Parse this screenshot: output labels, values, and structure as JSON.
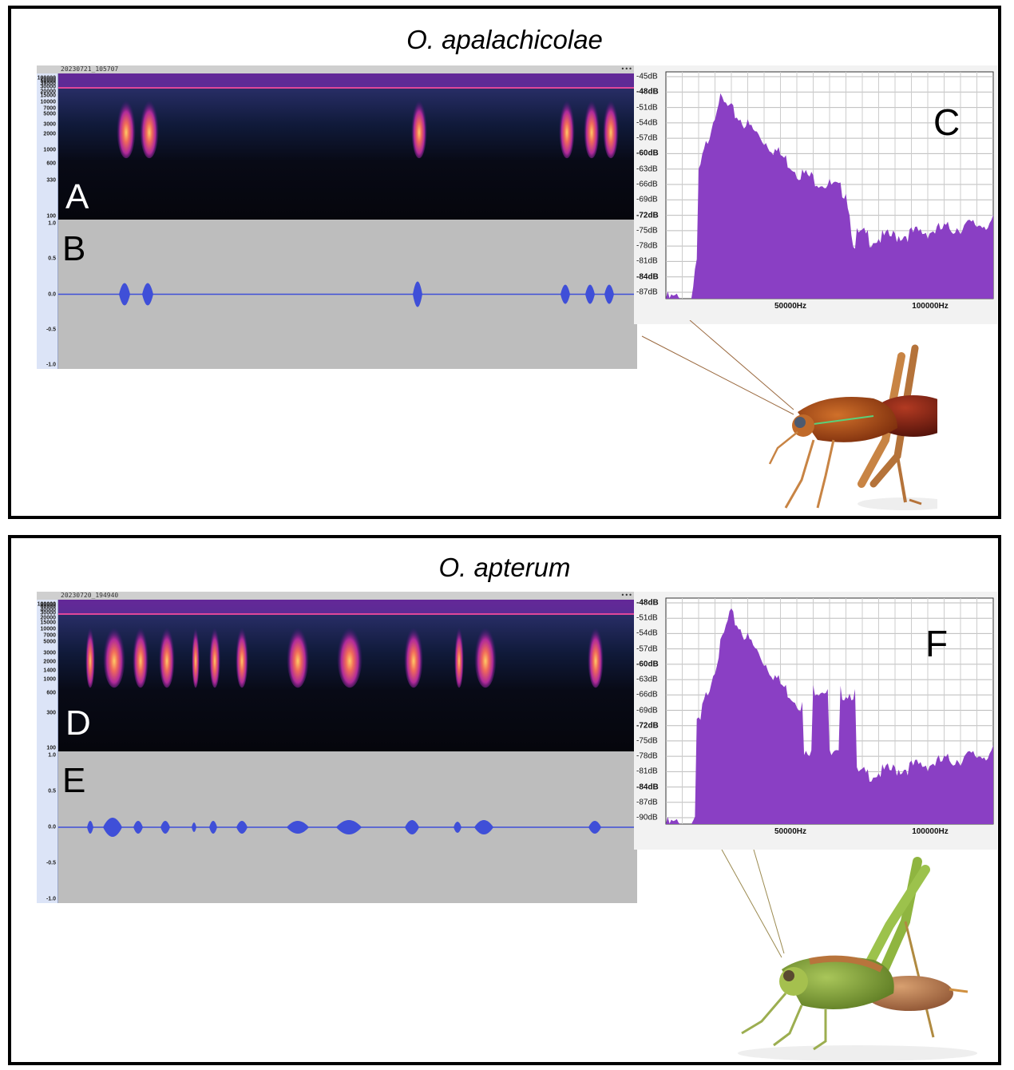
{
  "top": {
    "title": "O. apalachicolae",
    "track_name": "20230721_105707",
    "track_menu": "•••",
    "label_spectrogram": "A",
    "label_waveform": "B",
    "label_spectrum": "C",
    "spectro_ticks": [
      "100000",
      "70000",
      "50000",
      "39000",
      "30000",
      "20000",
      "15000",
      "10000",
      "7000",
      "5000",
      "3000",
      "2000",
      "1000",
      "600",
      "330",
      "100"
    ],
    "wave_ticks": [
      "1.0",
      "0.5",
      "0.0",
      "-0.5",
      "-1.0"
    ],
    "db_ticks": [
      "-45dB",
      "-48dB",
      "-51dB",
      "-54dB",
      "-57dB",
      "-60dB",
      "-63dB",
      "-66dB",
      "-69dB",
      "-72dB",
      "-75dB",
      "-78dB",
      "-81dB",
      "-84dB",
      "-87dB"
    ],
    "db_bold": [
      "-48dB",
      "-60dB",
      "-72dB",
      "-84dB"
    ],
    "freq_ticks": [
      "50000Hz",
      "100000Hz"
    ],
    "photo": "katydid-orange-brown"
  },
  "bottom": {
    "title": "O. apterum",
    "track_name": "20230720_194940",
    "track_menu": "•••",
    "label_spectrogram": "D",
    "label_waveform": "E",
    "label_spectrum": "F",
    "spectro_ticks": [
      "100000",
      "80000",
      "60000",
      "40000",
      "30000",
      "20000",
      "15000",
      "10000",
      "7000",
      "5000",
      "3000",
      "2000",
      "1400",
      "1000",
      "600",
      "300",
      "100"
    ],
    "wave_ticks": [
      "1.0",
      "0.5",
      "0.0",
      "-0.5",
      "-1.0"
    ],
    "db_ticks": [
      "-48dB",
      "-51dB",
      "-54dB",
      "-57dB",
      "-60dB",
      "-63dB",
      "-66dB",
      "-69dB",
      "-72dB",
      "-75dB",
      "-78dB",
      "-81dB",
      "-84dB",
      "-87dB",
      "-90dB"
    ],
    "db_bold": [
      "-48dB",
      "-60dB",
      "-72dB",
      "-84dB"
    ],
    "freq_ticks": [
      "50000Hz",
      "100000Hz"
    ],
    "photo": "katydid-green"
  },
  "colors": {
    "spectrum_fill": "#8a3fc4",
    "waveform": "#3f4fd8",
    "spectro_bg": "#0a0b18",
    "spectro_band": "#e0479a"
  }
}
